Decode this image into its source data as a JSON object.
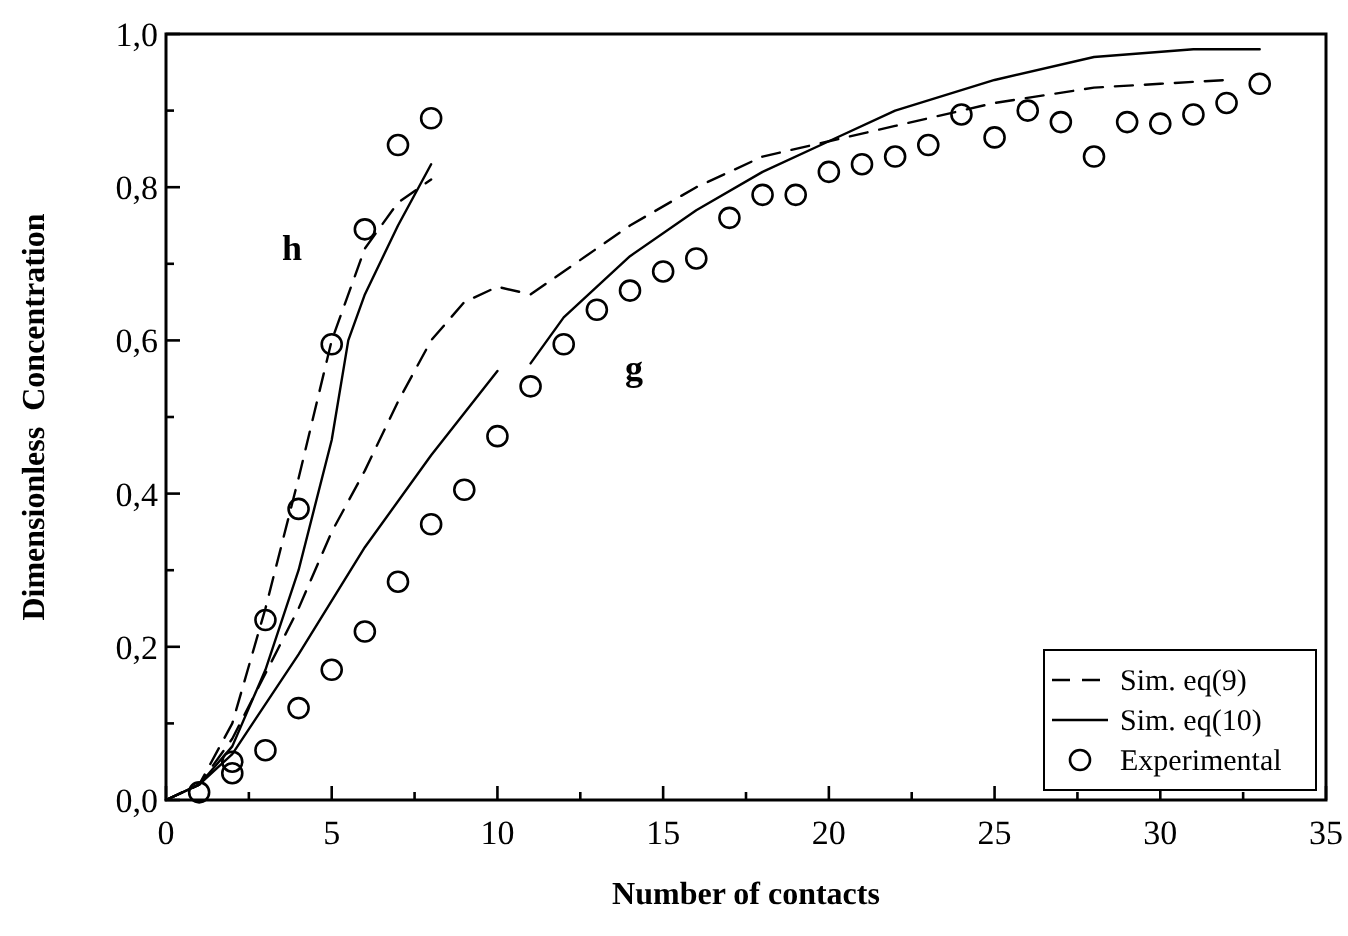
{
  "chart_data": {
    "type": "line",
    "xlabel": "Number of contacts",
    "ylabel": "Dimensionless  Concentration",
    "xlim": [
      0,
      35
    ],
    "ylim": [
      0,
      1
    ],
    "xticks": [
      0,
      {
        "value": 2.5,
        "label": null
      },
      5,
      {
        "value": 7.5,
        "label": null
      },
      10,
      {
        "value": 12.5,
        "label": null
      },
      15,
      {
        "value": 17.5,
        "label": null
      },
      20,
      {
        "value": 22.5,
        "label": null
      },
      25,
      {
        "value": 27.5,
        "label": null
      },
      30,
      {
        "value": 32.5,
        "label": null
      },
      35
    ],
    "yticks": [
      {
        "value": 0,
        "label": "0,0"
      },
      {
        "value": 0.1,
        "label": null
      },
      {
        "value": 0.2,
        "label": "0,2"
      },
      {
        "value": 0.3,
        "label": null
      },
      {
        "value": 0.4,
        "label": "0,4"
      },
      {
        "value": 0.5,
        "label": null
      },
      {
        "value": 0.6,
        "label": "0,6"
      },
      {
        "value": 0.7,
        "label": null
      },
      {
        "value": 0.8,
        "label": "0,8"
      },
      {
        "value": 0.9,
        "label": null
      },
      {
        "value": 1,
        "label": "1,0"
      }
    ],
    "grid": false,
    "legend": "bottom right",
    "series": [
      {
        "name": "Sim. eq(9)",
        "line_style": "dashed",
        "marker": "none",
        "color": "#000000",
        "x": [
          0,
          1,
          2,
          3,
          4,
          5,
          6,
          7,
          8
        ],
        "values": [
          0,
          0.02,
          0.1,
          0.25,
          0.42,
          0.6,
          0.72,
          0.78,
          0.81
        ]
      },
      {
        "name": "Sim. eq(10)",
        "line_style": "solid",
        "marker": "none",
        "color": "#000000",
        "x": [
          0,
          1,
          2,
          3,
          4,
          5,
          5.5,
          6,
          7,
          8
        ],
        "values": [
          0,
          0.02,
          0.07,
          0.17,
          0.3,
          0.47,
          0.6,
          0.66,
          0.75,
          0.83
        ]
      },
      {
        "line_style": "dashed",
        "marker": "none",
        "color": "#000000",
        "x": [
          0,
          1,
          2,
          4,
          5,
          6,
          7,
          8,
          9,
          10,
          11,
          12,
          14,
          16,
          18,
          20,
          22,
          25,
          28,
          30,
          32
        ],
        "values": [
          0,
          0.02,
          0.08,
          0.25,
          0.35,
          0.43,
          0.52,
          0.6,
          0.65,
          0.67,
          0.66,
          0.69,
          0.75,
          0.8,
          0.84,
          0.86,
          0.88,
          0.91,
          0.93,
          0.935,
          0.94
        ]
      },
      {
        "line_style": "solid",
        "marker": "none",
        "color": "#000000",
        "x": [
          0,
          1,
          2,
          4,
          6,
          8,
          10
        ],
        "values": [
          0,
          0.02,
          0.06,
          0.19,
          0.33,
          0.45,
          0.56
        ]
      },
      {
        "line_style": "solid",
        "marker": "none",
        "color": "#000000",
        "x": [
          11,
          12,
          14,
          16,
          18,
          20,
          22,
          25,
          28,
          31,
          33
        ],
        "values": [
          0.57,
          0.63,
          0.71,
          0.77,
          0.82,
          0.86,
          0.9,
          0.94,
          0.97,
          0.98,
          0.98
        ]
      },
      {
        "name": "Experimental",
        "type": "scatter",
        "marker": "circle",
        "color": "#000000",
        "x": [
          1,
          2,
          3,
          4,
          5,
          6,
          7,
          8,
          2,
          3,
          4,
          5,
          6,
          7,
          8,
          9,
          10,
          11,
          12,
          13,
          14,
          15,
          16,
          17,
          18,
          19,
          20,
          21,
          22,
          23,
          24,
          25,
          26,
          27,
          28,
          29,
          30,
          31,
          32,
          33
        ],
        "values": [
          0.01,
          0.05,
          0.235,
          0.38,
          0.595,
          0.745,
          0.855,
          0.89,
          0.035,
          0.065,
          0.12,
          0.17,
          0.22,
          0.285,
          0.36,
          0.405,
          0.475,
          0.54,
          0.595,
          0.64,
          0.665,
          0.69,
          0.707,
          0.76,
          0.79,
          0.79,
          0.82,
          0.83,
          0.84,
          0.855,
          0.895,
          0.865,
          0.9,
          0.885,
          0.84,
          0.885,
          0.883,
          0.895,
          0.91,
          0.935
        ]
      }
    ],
    "annotations": [
      "h",
      "g"
    ]
  }
}
